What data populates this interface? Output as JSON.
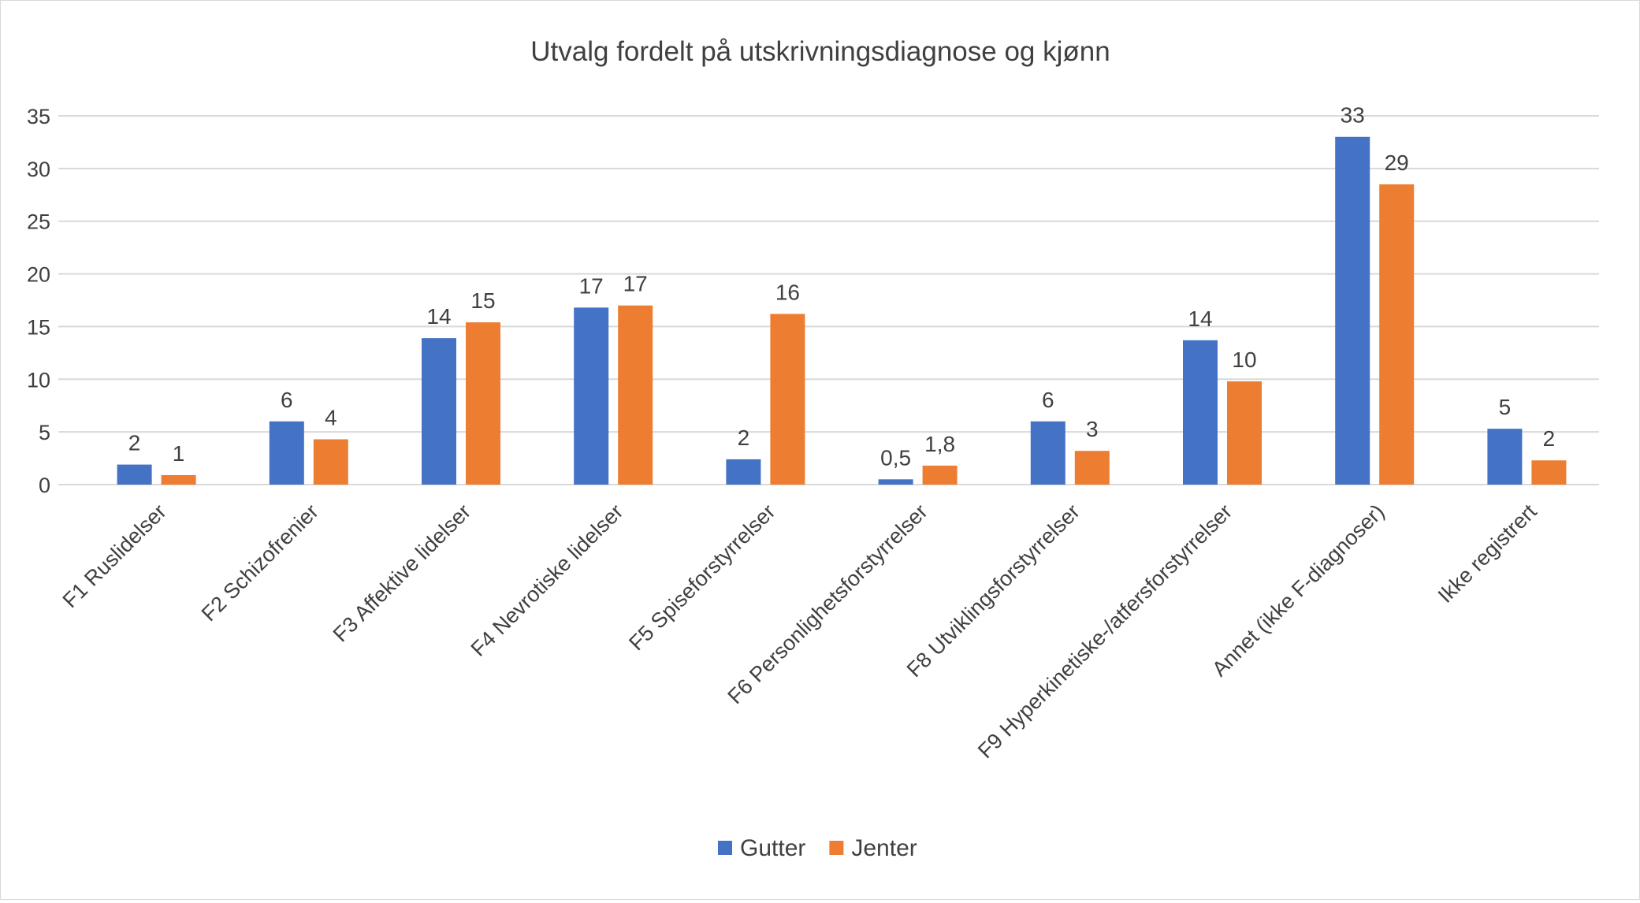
{
  "chart_data": {
    "type": "bar",
    "title": "Utvalg fordelt på utskrivningsdiagnose og kjønn",
    "xlabel": "",
    "ylabel": "",
    "ylim": [
      0,
      35
    ],
    "yticks": [
      0,
      5,
      10,
      15,
      20,
      25,
      30,
      35
    ],
    "grid": true,
    "legend_position": "bottom",
    "categories": [
      "F1 Ruslidelser",
      "F2 Schizofrenier",
      "F3 Affektive lidelser",
      "F4 Nevrotiske lidelser",
      "F5 Spiseforstyrrelser",
      "F6 Personlighetsforstyrrelser",
      "F8 Utviklingsforstyrrelser",
      "F9 Hyperkinetiske-/atfersforstyrrelser",
      "Annet (ikke F-diagnoser)",
      "Ikke registrert"
    ],
    "series": [
      {
        "name": "Gutter",
        "color": "#4472C4",
        "values": [
          1.9,
          6.0,
          13.9,
          16.8,
          2.4,
          0.5,
          6.0,
          13.7,
          33.0,
          5.3
        ],
        "data_labels": [
          "2",
          "6",
          "14",
          "17",
          "2",
          "0,5",
          "6",
          "14",
          "33",
          "5"
        ]
      },
      {
        "name": "Jenter",
        "color": "#ED7D31",
        "values": [
          0.9,
          4.3,
          15.4,
          17.0,
          16.2,
          1.8,
          3.2,
          9.8,
          28.5,
          2.3
        ],
        "data_labels": [
          "1",
          "4",
          "15",
          "17",
          "16",
          "1,8",
          "3",
          "10",
          "29",
          "2"
        ]
      }
    ]
  }
}
